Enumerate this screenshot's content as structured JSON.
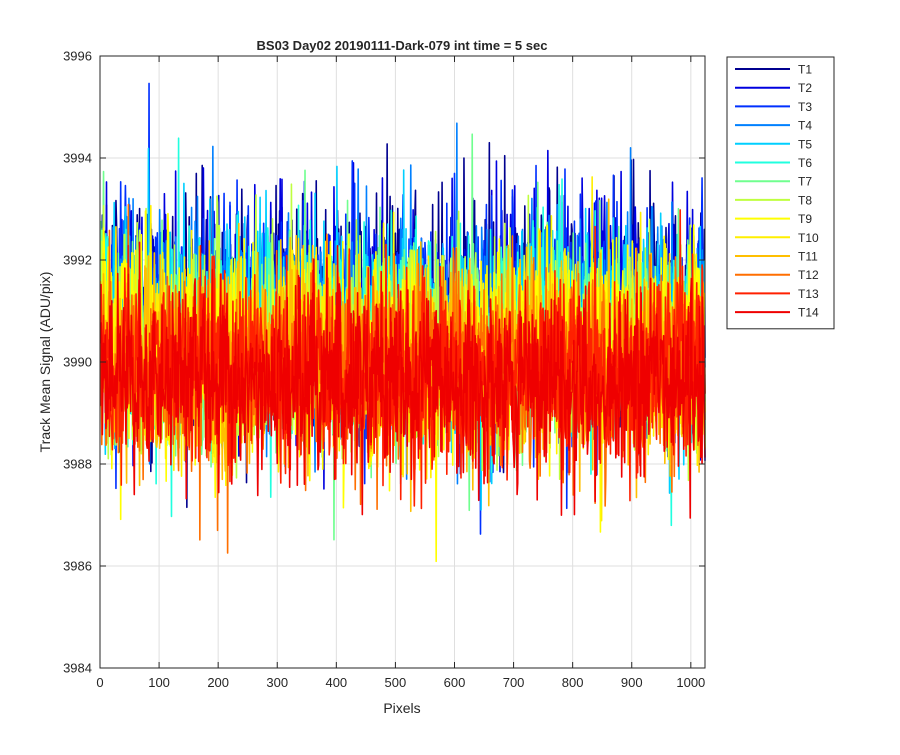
{
  "chart_data": {
    "type": "line",
    "title": "BS03 Day02 20190111-Dark-079 int time = 5 sec",
    "xlabel": "Pixels",
    "ylabel": "Track Mean Signal (ADU/pix)",
    "xlim": [
      0,
      1024
    ],
    "ylim": [
      3984,
      3996
    ],
    "xticks": [
      "0",
      "100",
      "200",
      "300",
      "400",
      "500",
      "600",
      "700",
      "800",
      "900",
      "1000"
    ],
    "xtick_values": [
      0,
      100,
      200,
      300,
      400,
      500,
      600,
      700,
      800,
      900,
      1000
    ],
    "yticks": [
      "3984",
      "3986",
      "3988",
      "3990",
      "3992",
      "3994",
      "3996"
    ],
    "ytick_values": [
      3984,
      3986,
      3988,
      3990,
      3992,
      3994,
      3996
    ],
    "grid": true,
    "legend_position": "outside-top-right",
    "x_points": 1024,
    "series": [
      {
        "name": "T1",
        "color": "#00008f",
        "mean": 3991.0,
        "spread": 1.1
      },
      {
        "name": "T2",
        "color": "#0000df",
        "mean": 3990.9,
        "spread": 1.1
      },
      {
        "name": "T3",
        "color": "#0030ff",
        "mean": 3990.8,
        "spread": 1.05
      },
      {
        "name": "T4",
        "color": "#0080ff",
        "mean": 3990.7,
        "spread": 1.05
      },
      {
        "name": "T5",
        "color": "#00cfff",
        "mean": 3990.6,
        "spread": 1.05
      },
      {
        "name": "T6",
        "color": "#20ffdf",
        "mean": 3990.5,
        "spread": 1.0
      },
      {
        "name": "T7",
        "color": "#70ff8f",
        "mean": 3990.4,
        "spread": 1.0
      },
      {
        "name": "T8",
        "color": "#bfff40",
        "mean": 3990.3,
        "spread": 1.0
      },
      {
        "name": "T9",
        "color": "#ffff00",
        "mean": 3990.2,
        "spread": 1.0
      },
      {
        "name": "T10",
        "color": "#ffef00",
        "mean": 3990.1,
        "spread": 0.95
      },
      {
        "name": "T11",
        "color": "#ffbf00",
        "mean": 3990.0,
        "spread": 0.95
      },
      {
        "name": "T12",
        "color": "#ff6f00",
        "mean": 3989.9,
        "spread": 0.95
      },
      {
        "name": "T13",
        "color": "#ff2000",
        "mean": 3989.8,
        "spread": 0.95
      },
      {
        "name": "T14",
        "color": "#ef0000",
        "mean": 3989.6,
        "spread": 0.9
      }
    ]
  }
}
